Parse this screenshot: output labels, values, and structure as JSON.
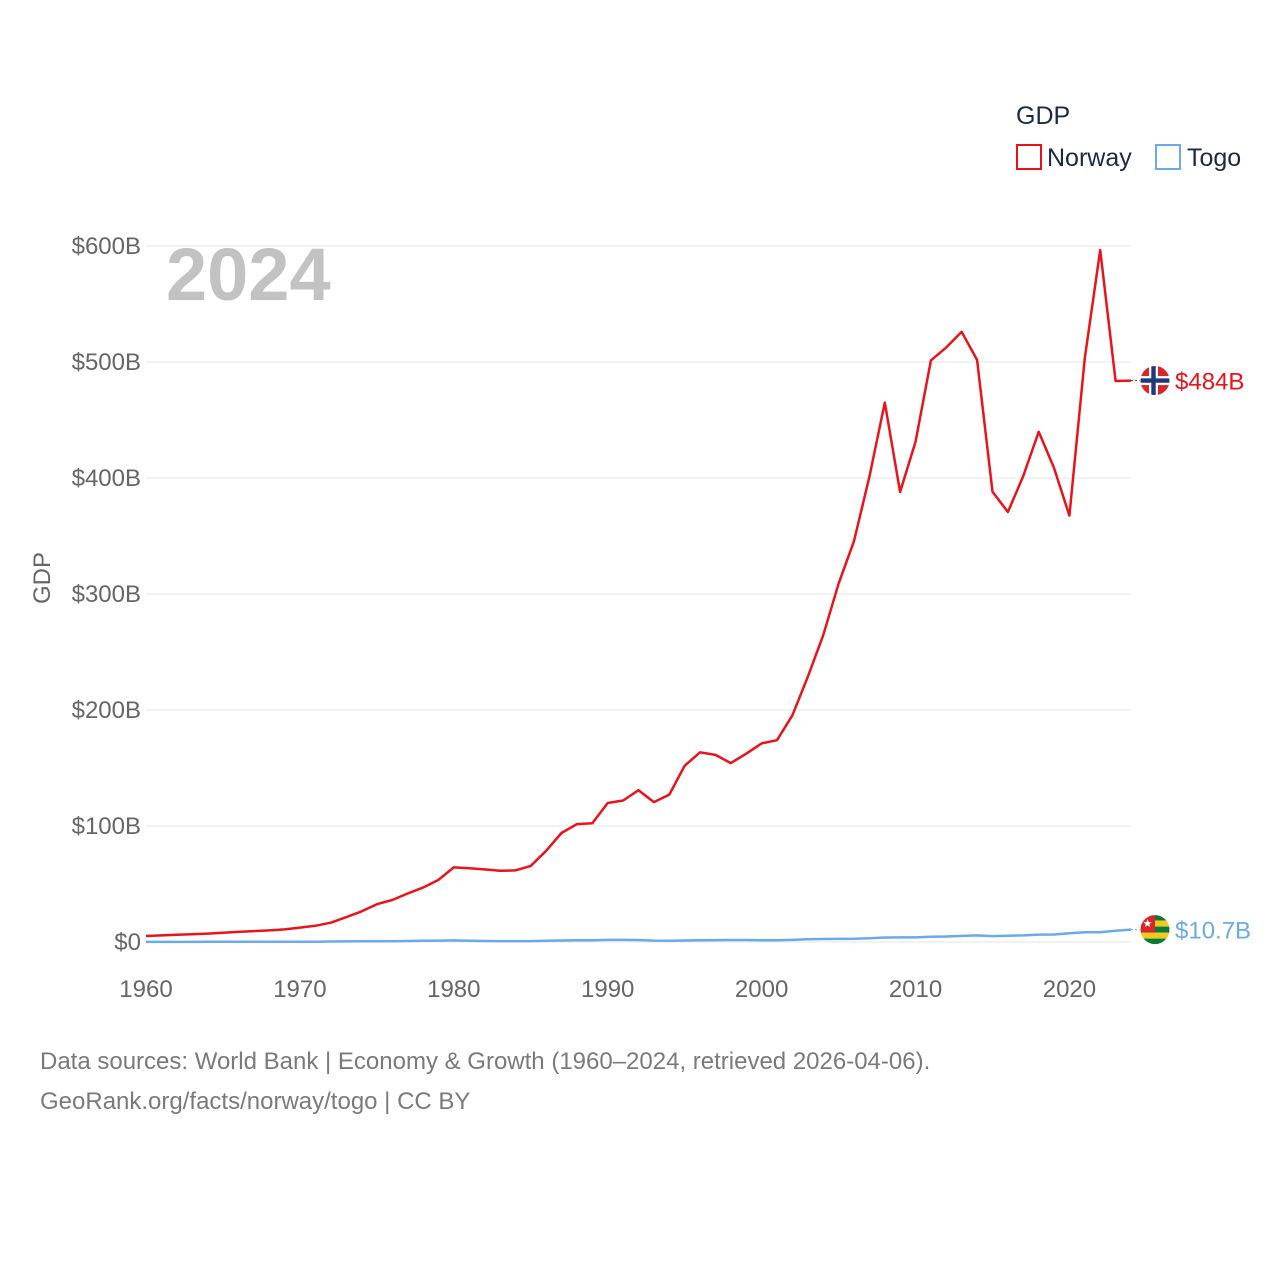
{
  "chart_data": {
    "type": "line",
    "year_label": "2024",
    "ylabel": "GDP",
    "xlim": [
      1960,
      2024
    ],
    "ylim": [
      0,
      600
    ],
    "y_unit": "billion USD",
    "x_ticks": [
      "1960",
      "1970",
      "1980",
      "1990",
      "2000",
      "2010",
      "2020"
    ],
    "y_ticks": [
      {
        "value": 0,
        "label": "$0"
      },
      {
        "value": 100,
        "label": "$100B"
      },
      {
        "value": 200,
        "label": "$200B"
      },
      {
        "value": 300,
        "label": "$300B"
      },
      {
        "value": 400,
        "label": "$400B"
      },
      {
        "value": 500,
        "label": "$500B"
      },
      {
        "value": 600,
        "label": "$600B"
      }
    ],
    "legend": {
      "title": "GDP",
      "placement": "top-right"
    },
    "x": [
      1960,
      1961,
      1962,
      1963,
      1964,
      1965,
      1966,
      1967,
      1968,
      1969,
      1970,
      1971,
      1972,
      1973,
      1974,
      1975,
      1976,
      1977,
      1978,
      1979,
      1980,
      1981,
      1982,
      1983,
      1984,
      1985,
      1986,
      1987,
      1988,
      1989,
      1990,
      1991,
      1992,
      1993,
      1994,
      1995,
      1996,
      1997,
      1998,
      1999,
      2000,
      2001,
      2002,
      2003,
      2004,
      2005,
      2006,
      2007,
      2008,
      2009,
      2010,
      2011,
      2012,
      2013,
      2014,
      2015,
      2016,
      2017,
      2018,
      2019,
      2020,
      2021,
      2022,
      2023,
      2024
    ],
    "series": [
      {
        "name": "Norway",
        "color": "#e8141c",
        "end_label": "$484B",
        "values": [
          5.2,
          5.7,
          6.2,
          6.6,
          7.2,
          8.0,
          8.7,
          9.4,
          10.0,
          10.9,
          12.4,
          14.0,
          16.6,
          21.4,
          26.4,
          32.6,
          36.2,
          41.8,
          46.9,
          53.5,
          64.3,
          63.5,
          62.6,
          61.4,
          61.7,
          65.6,
          78.7,
          94.0,
          101.6,
          102.4,
          119.8,
          122.0,
          130.9,
          120.6,
          127.1,
          152.0,
          163.5,
          161.3,
          154.2,
          162.3,
          171.2,
          174.0,
          195.4,
          228.6,
          264.4,
          308.9,
          345.6,
          401.1,
          465.0,
          387.9,
          431.1,
          501.4,
          512.6,
          526.0,
          501.7,
          388.2,
          370.7,
          401.8,
          439.8,
          408.7,
          367.6,
          503.4,
          596.5,
          483.6,
          484.0
        ]
      },
      {
        "name": "Togo",
        "color": "#6aaae8",
        "end_label": "$10.7B",
        "values": [
          0.1,
          0.1,
          0.1,
          0.1,
          0.2,
          0.2,
          0.2,
          0.2,
          0.3,
          0.3,
          0.3,
          0.3,
          0.4,
          0.5,
          0.7,
          0.7,
          0.7,
          0.9,
          1.1,
          1.2,
          1.4,
          1.1,
          0.9,
          0.8,
          0.8,
          0.8,
          1.1,
          1.3,
          1.5,
          1.5,
          1.8,
          1.8,
          1.7,
          1.2,
          1.0,
          1.3,
          1.5,
          1.6,
          1.7,
          1.7,
          1.5,
          1.5,
          1.8,
          2.3,
          2.6,
          2.7,
          2.8,
          3.2,
          3.9,
          4.0,
          4.0,
          4.6,
          4.7,
          5.3,
          5.7,
          5.1,
          5.4,
          5.7,
          6.4,
          6.5,
          7.6,
          8.4,
          8.4,
          9.7,
          10.7
        ]
      }
    ]
  },
  "footer": {
    "line1": "Data sources: World Bank | Economy & Growth (1960–2024, retrieved 2026-04-06).",
    "line2": "GeoRank.org/facts/norway/togo | CC BY"
  }
}
